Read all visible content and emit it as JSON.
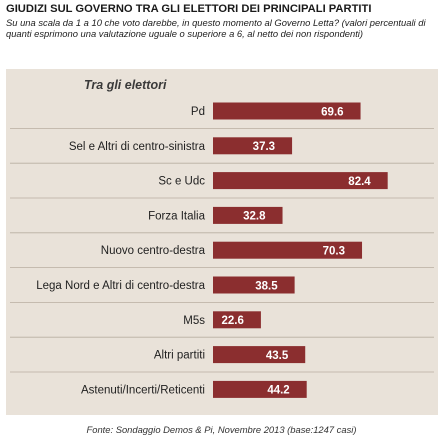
{
  "title": "GIUDIZI SUL GOVERNO TRA GLI ELETTORI DEI PRINCIPALI PARTITI",
  "subtitle": "Su una scala da 1 a 10 che voto darebbe, in questo momento al Governo Letta? (valori percentuali di quanti esprimono una valutazione uguale o superiore a 6, al netto dei non rispondenti)",
  "panel_title": "Tra gli elettori",
  "source": "Fonte: Sondaggio Demos & Pi, Novembre 2013 (base:1247 casi)",
  "colors": {
    "bar": "#8b2e2f",
    "panel": "#e9e2d9",
    "separator": "#b9aea1"
  },
  "chart_data": {
    "type": "bar",
    "orientation": "horizontal",
    "categories": [
      "Pd",
      "Sel e Altri di centro-sinistra",
      "Sc e Udc",
      "Forza Italia",
      "Nuovo centro-destra",
      "Lega Nord e Altri di centro-destra",
      "M5s",
      "Altri partiti",
      "Astenuti/Incerti/Reticenti"
    ],
    "values": [
      69.6,
      37.3,
      82.4,
      32.8,
      70.3,
      38.5,
      22.6,
      43.5,
      44.2
    ],
    "value_labels": [
      "69.6",
      "37.3",
      "82.4",
      "32.8",
      "70.3",
      "38.5",
      "22.6",
      "43.5",
      "44.2"
    ],
    "xlim": [
      0,
      100
    ],
    "grid": false,
    "data_labels": "inside-end"
  }
}
